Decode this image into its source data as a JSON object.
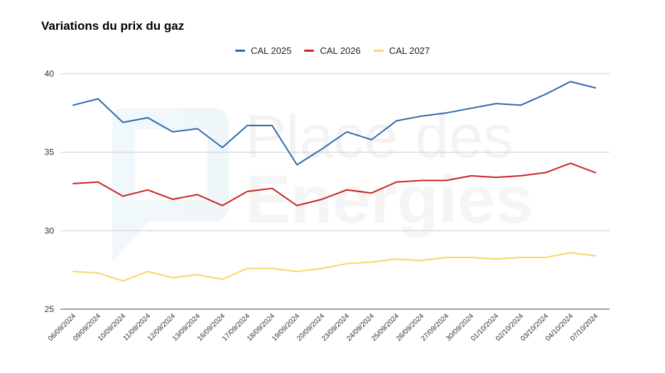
{
  "chart_data": {
    "type": "line",
    "title": "Variations du prix du gaz",
    "xlabel": "",
    "ylabel": "",
    "ylim": [
      25,
      40
    ],
    "yticks": [
      25,
      30,
      35,
      40
    ],
    "grid": true,
    "legend_position": "top-center",
    "categories": [
      "06/09/2024",
      "09/09/2024",
      "10/09/2024",
      "11/09/2024",
      "12/09/2024",
      "13/09/2024",
      "16/09/2024",
      "17/09/2024",
      "18/09/2024",
      "19/09/2024",
      "20/09/2024",
      "23/09/2024",
      "24/09/2024",
      "25/09/2024",
      "26/09/2024",
      "27/09/2024",
      "30/09/2024",
      "01/10/2024",
      "02/10/2024",
      "03/10/2024",
      "04/10/2024",
      "07/10/2024"
    ],
    "series": [
      {
        "name": "CAL 2025",
        "color": "#2f6aab",
        "values": [
          38.0,
          38.4,
          36.9,
          37.2,
          36.3,
          36.5,
          35.3,
          36.7,
          36.7,
          34.2,
          35.2,
          36.3,
          35.8,
          37.0,
          37.3,
          37.5,
          37.8,
          38.1,
          38.0,
          38.7,
          39.5,
          39.1
        ]
      },
      {
        "name": "CAL 2026",
        "color": "#cc2424",
        "values": [
          33.0,
          33.1,
          32.2,
          32.6,
          32.0,
          32.3,
          31.6,
          32.5,
          32.7,
          31.6,
          32.0,
          32.6,
          32.4,
          33.1,
          33.2,
          33.2,
          33.5,
          33.4,
          33.5,
          33.7,
          34.3,
          33.7
        ]
      },
      {
        "name": "CAL 2027",
        "color": "#f7d767",
        "values": [
          27.4,
          27.3,
          26.8,
          27.4,
          27.0,
          27.2,
          26.9,
          27.6,
          27.6,
          27.4,
          27.6,
          27.9,
          28.0,
          28.2,
          28.1,
          28.3,
          28.3,
          28.2,
          28.3,
          28.3,
          28.6,
          28.4
        ]
      }
    ]
  },
  "watermark": {
    "line1": "Place des",
    "line2": "Energies"
  }
}
